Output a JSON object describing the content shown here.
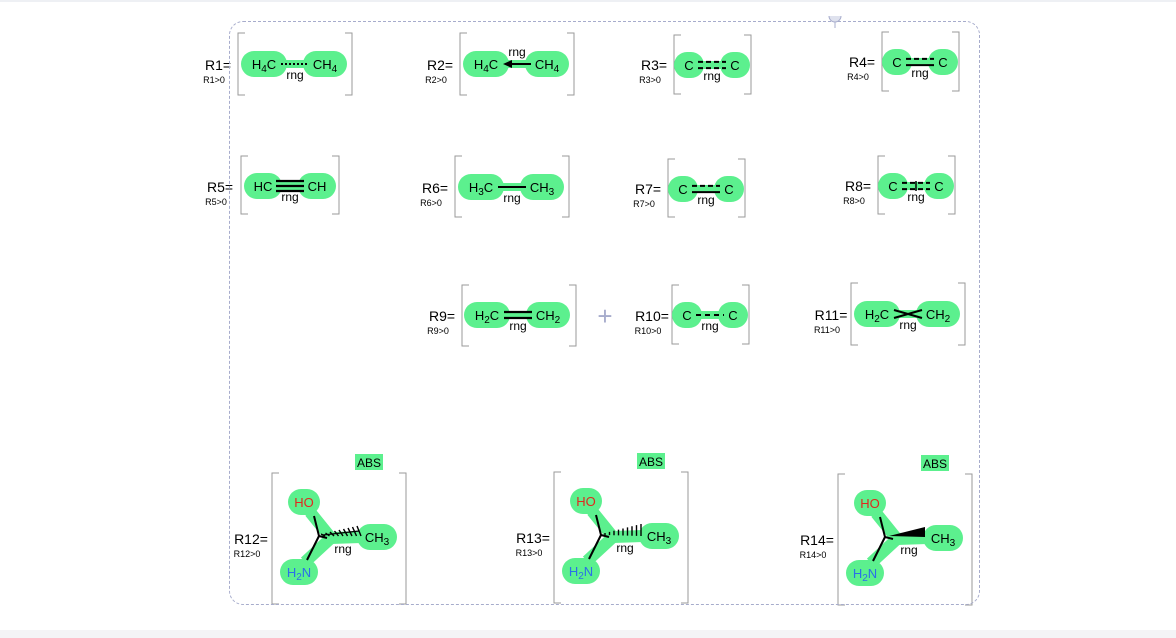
{
  "colors": {
    "highlight": "#5cf08e",
    "bond": "#000000",
    "oxygen": "#e0281e",
    "nitrogen": "#2b6fe8",
    "frame": "#a7accc",
    "bracket": "#9a9a9a"
  },
  "labels": {
    "ring": "rng",
    "abs": "ABS",
    "plus": "+"
  },
  "groups": [
    {
      "id": "R1",
      "label": "R1=",
      "sub": "R1>0",
      "left": [
        "H",
        "4",
        "C"
      ],
      "right": [
        "CH",
        "4"
      ],
      "bond": "dotted"
    },
    {
      "id": "R2",
      "label": "R2=",
      "sub": "R2>0",
      "left": [
        "H",
        "4",
        "C"
      ],
      "right": [
        "CH",
        "4"
      ],
      "bond": "dative"
    },
    {
      "id": "R3",
      "label": "R3=",
      "sub": "R3>0",
      "left": [
        "",
        "",
        "C"
      ],
      "right": [
        "C",
        ""
      ],
      "bond": "double-dashed"
    },
    {
      "id": "R4",
      "label": "R4=",
      "sub": "R4>0",
      "left": [
        "",
        "",
        "C"
      ],
      "right": [
        "C",
        ""
      ],
      "bond": "double-one-dashed"
    },
    {
      "id": "R5",
      "label": "R5=",
      "sub": "R5>0",
      "left": [
        "",
        "",
        "HC"
      ],
      "right": [
        "CH",
        ""
      ],
      "bond": "triple"
    },
    {
      "id": "R6",
      "label": "R6=",
      "sub": "R6>0",
      "left": [
        "H",
        "3",
        "C"
      ],
      "right": [
        "CH",
        "3"
      ],
      "bond": "single"
    },
    {
      "id": "R7",
      "label": "R7=",
      "sub": "R7>0",
      "left": [
        "",
        "",
        "C"
      ],
      "right": [
        "C",
        ""
      ],
      "bond": "double-one-dashed"
    },
    {
      "id": "R8",
      "label": "R8=",
      "sub": "R8>0",
      "left": [
        "",
        "",
        "C"
      ],
      "right": [
        "C",
        ""
      ],
      "bond": "double-cross-dashed"
    },
    {
      "id": "R9",
      "label": "R9=",
      "sub": "R9>0",
      "left": [
        "H",
        "2",
        "C"
      ],
      "right": [
        "CH",
        "2"
      ],
      "bond": "double"
    },
    {
      "id": "R10",
      "label": "R10=",
      "sub": "R10>0",
      "left": [
        "",
        "",
        "C"
      ],
      "right": [
        "C",
        ""
      ],
      "bond": "dashed"
    },
    {
      "id": "R11",
      "label": "R11=",
      "sub": "R11>0",
      "left": [
        "H",
        "2",
        "C"
      ],
      "right": [
        "CH",
        "2"
      ],
      "bond": "crossed"
    },
    {
      "id": "R12",
      "label": "R12=",
      "sub": "R12>0",
      "oh": "HO",
      "nh": [
        "H",
        "2",
        "N"
      ],
      "ch": [
        "CH",
        "3"
      ],
      "wedge": "wavy"
    },
    {
      "id": "R13",
      "label": "R13=",
      "sub": "R13>0",
      "oh": "HO",
      "nh": [
        "H",
        "2",
        "N"
      ],
      "ch": [
        "CH",
        "3"
      ],
      "wedge": "hashed"
    },
    {
      "id": "R14",
      "label": "R14=",
      "sub": "R14>0",
      "oh": "HO",
      "nh": [
        "H",
        "2",
        "N"
      ],
      "ch": [
        "CH",
        "3"
      ],
      "wedge": "solid"
    }
  ]
}
